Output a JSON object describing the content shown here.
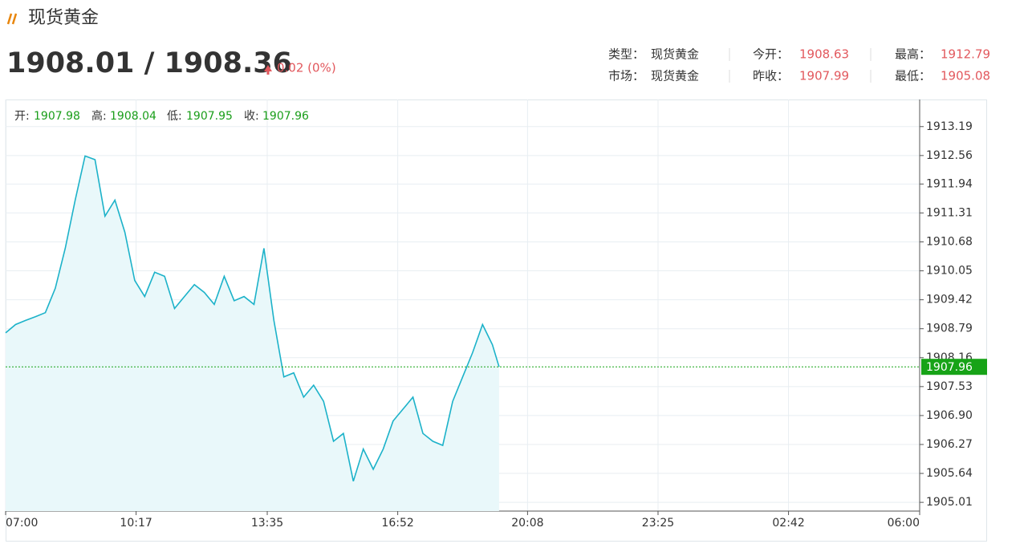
{
  "header": {
    "title": "现货黄金",
    "price": "1908.01 / 1908.36",
    "change": "0.02 (0%)"
  },
  "info": [
    [
      {
        "label": "类型：",
        "value": "现货黄金"
      },
      {
        "label": "今开：",
        "value": 1908.63
      },
      {
        "label": "最高：",
        "value": 1912.79
      }
    ],
    [
      {
        "label": "市场：",
        "value": "现货黄金"
      },
      {
        "label": "昨收：",
        "value": 1907.99
      },
      {
        "label": "最低：",
        "value": 1905.08
      }
    ]
  ],
  "ohlc": [
    {
      "label": "开:",
      "value": 1907.98
    },
    {
      "label": "高:",
      "value": 1908.04
    },
    {
      "label": "低:",
      "value": 1907.95
    },
    {
      "label": "收:",
      "value": 1907.96
    }
  ],
  "chart_data": {
    "type": "area",
    "color": "#1cb2c9",
    "fill": "#e9f8fa",
    "grid": true,
    "x": [
      "07:00",
      "07:15",
      "07:30",
      "07:45",
      "08:00",
      "08:15",
      "08:30",
      "08:45",
      "09:00",
      "09:15",
      "09:30",
      "09:45",
      "10:00",
      "10:15",
      "10:30",
      "10:45",
      "11:00",
      "11:15",
      "11:30",
      "11:45",
      "12:00",
      "12:15",
      "12:30",
      "12:45",
      "13:00",
      "13:15",
      "13:30",
      "13:45",
      "14:00",
      "14:15",
      "14:30",
      "14:45",
      "15:00",
      "15:15",
      "15:30",
      "15:45",
      "16:00",
      "16:15",
      "16:30",
      "16:45",
      "17:00",
      "17:15",
      "17:30",
      "17:45",
      "18:00",
      "18:15",
      "18:30",
      "18:45",
      "19:00",
      "19:15",
      "19:25"
    ],
    "values": [
      1908.7,
      1908.88,
      1908.97,
      1909.05,
      1909.14,
      1909.67,
      1910.54,
      1911.59,
      1912.55,
      1912.47,
      1911.24,
      1911.59,
      1910.89,
      1909.84,
      1909.49,
      1910.02,
      1909.93,
      1909.23,
      1909.49,
      1909.75,
      1909.58,
      1909.32,
      1909.93,
      1909.4,
      1909.49,
      1909.32,
      1910.54,
      1908.97,
      1907.74,
      1907.83,
      1907.3,
      1907.56,
      1907.21,
      1906.34,
      1906.51,
      1905.47,
      1906.17,
      1905.73,
      1906.17,
      1906.78,
      1907.04,
      1907.3,
      1906.51,
      1906.34,
      1906.25,
      1907.21,
      1907.74,
      1908.27,
      1908.88,
      1908.44,
      1907.96
    ],
    "xticks": [
      "07:00",
      "10:17",
      "13:35",
      "16:52",
      "20:08",
      "23:25",
      "02:42",
      "06:00"
    ],
    "ylim": [
      1904.82,
      1913.78
    ],
    "yticks": [
      1913.19,
      1912.56,
      1911.94,
      1911.31,
      1910.68,
      1910.05,
      1909.42,
      1908.79,
      1908.16,
      1907.53,
      {
        "value": 1906.9,
        "label": "1906.90"
      },
      1906.27,
      1905.64,
      1905.01
    ],
    "last": {
      "value": 1907.96,
      "color": "#17a317"
    }
  }
}
